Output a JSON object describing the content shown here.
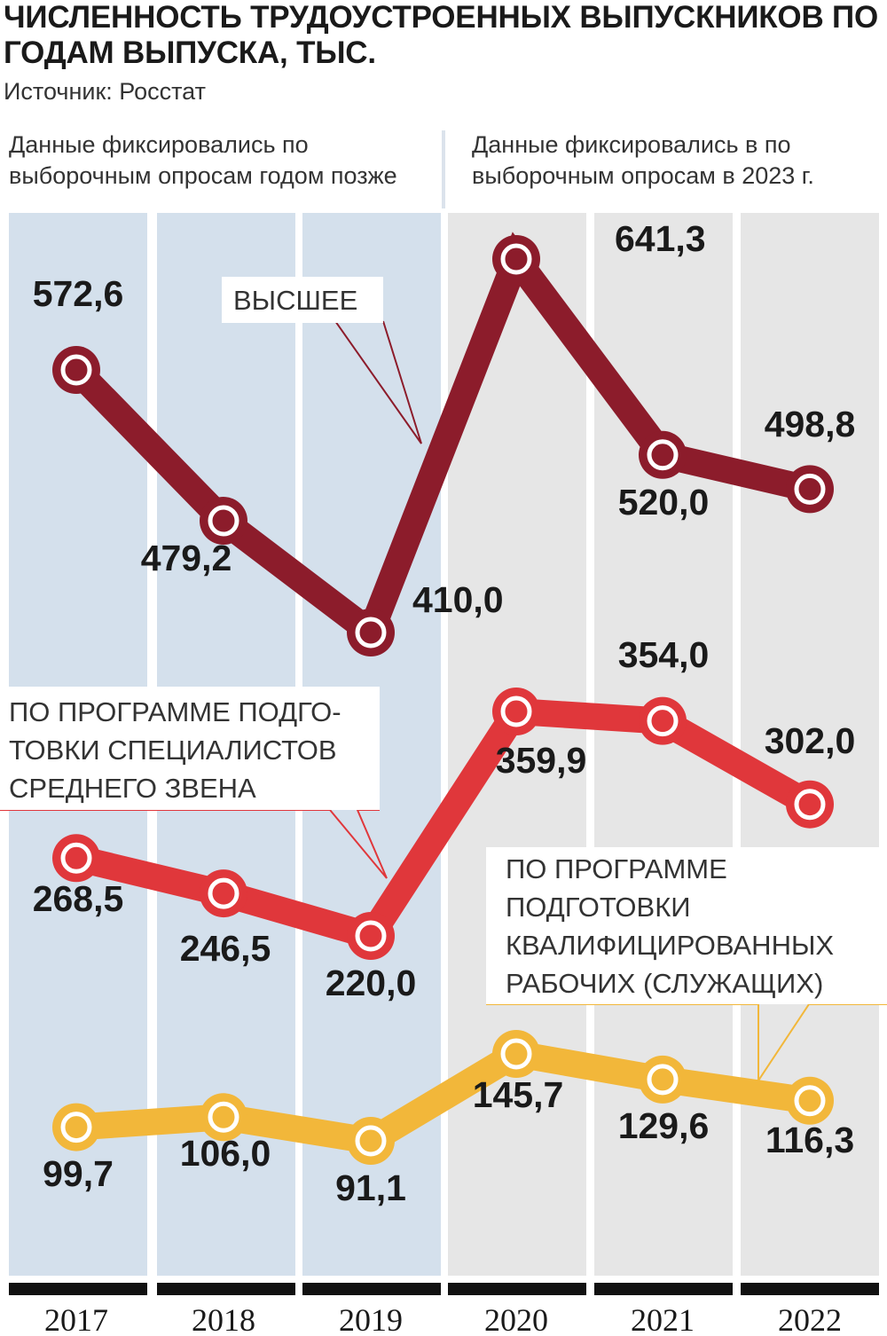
{
  "chart_data": {
    "type": "line",
    "title": "ЧИСЛЕННОСТЬ ТРУДОУСТРОЕННЫХ ВЫПУСКНИКОВ ПО ГОДАМ ВЫПУСКА, ТЫС.",
    "source": "Источник: Росстат",
    "notes": {
      "left": "Данные фиксировались по выборочным опросам годом позже",
      "right": "Данные фиксировались в по выборочным опросам в 2023 г."
    },
    "categories": [
      "2017",
      "2018",
      "2019",
      "2020",
      "2021",
      "2022"
    ],
    "series": [
      {
        "name": "ВЫСШЕЕ",
        "color": "#8c1c2b",
        "values": [
          572.6,
          479.2,
          410.0,
          641.3,
          520.0,
          498.8
        ],
        "labels": [
          "572,6",
          "479,2",
          "410,0",
          "641,3",
          "520,0",
          "498,8"
        ]
      },
      {
        "name": "ПО ПРОГРАММЕ ПОДГОТОВКИ СПЕЦИАЛИСТОВ СРЕДНЕГО ЗВЕНА",
        "color": "#e0373b",
        "values": [
          268.5,
          246.5,
          220.0,
          359.9,
          354.0,
          302.0
        ],
        "labels": [
          "268,5",
          "246,5",
          "220,0",
          "359,9",
          "354,0",
          "302,0"
        ]
      },
      {
        "name": "ПО ПРОГРАММЕ ПОДГОТОВКИ КВАЛИФИЦИРОВАННЫХ РАБОЧИХ (СЛУЖАЩИХ)",
        "color": "#f2b73a",
        "values": [
          99.7,
          106.0,
          91.1,
          145.7,
          129.6,
          116.3
        ],
        "labels": [
          "99,7",
          "106,0",
          "91,1",
          "145,7",
          "129,6",
          "116,3"
        ]
      }
    ],
    "series_labels": {
      "higher": [
        "ВЫСШЕЕ"
      ],
      "mid": [
        "ПО ПРОГРАММЕ ПОДГО-",
        "ТОВКИ СПЕЦИАЛИСТОВ",
        "СРЕДНЕГО ЗВЕНА"
      ],
      "workers": [
        "ПО ПРОГРАММЕ",
        "ПОДГОТОВКИ",
        "КВАЛИФИЦИРОВАННЫХ",
        "РАБОЧИХ (СЛУЖАЩИХ)"
      ]
    },
    "column_colors": {
      "left": "#d4e0ec",
      "right": "#e6e6e6"
    },
    "grid": false,
    "legend": "inline-callouts"
  }
}
